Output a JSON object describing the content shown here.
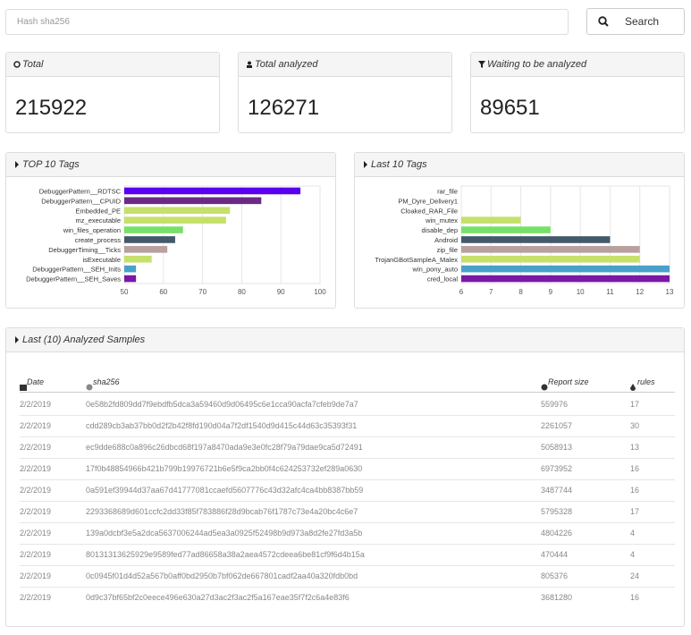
{
  "search": {
    "placeholder": "Hash sha256",
    "button": "Search"
  },
  "stats": [
    {
      "title": "Total",
      "value": 215922
    },
    {
      "title": "Total analyzed",
      "value": 126271
    },
    {
      "title": "Waiting to be analyzed",
      "value": 89651
    }
  ],
  "chart_data": [
    {
      "type": "hbar",
      "title": "TOP 10 Tags",
      "categories": [
        "DebuggerPattern__RDTSC",
        "DebuggerPattern__CPUID",
        "Embedded_PE",
        "mz_executable",
        "win_files_operation",
        "create_process",
        "DebuggerTiming__Ticks",
        "isExecutable",
        "DebuggerPattern__SEH_Inits",
        "DebuggerPattern__SEH_Saves"
      ],
      "values": [
        95,
        85,
        77,
        76,
        65,
        63,
        61,
        57,
        53,
        53
      ],
      "colors": [
        "#5a00f0",
        "#6a2a86",
        "#c6e06c",
        "#c6e06c",
        "#78e068",
        "#44596a",
        "#b8a09e",
        "#c6e06c",
        "#48a2c8",
        "#7a18a8"
      ],
      "xlim": [
        50,
        100
      ],
      "xticks": [
        50,
        60,
        70,
        80,
        90,
        100
      ],
      "grid": true
    },
    {
      "type": "hbar",
      "title": "Last 10 Tags",
      "categories": [
        "rar_file",
        "PM_Dyre_Delivery1",
        "Cloaked_RAR_File",
        "win_mutex",
        "disable_dep",
        "Android",
        "zip_file",
        "TrojanGBotSampleA_Malex",
        "win_pony_auto",
        "cred_local"
      ],
      "values": [
        6,
        6,
        6,
        8,
        9,
        11,
        12,
        12,
        13,
        13
      ],
      "colors": [
        "#c6e06c",
        "#c6e06c",
        "#c6e06c",
        "#c6e06c",
        "#78e068",
        "#44596a",
        "#b8a09e",
        "#c6e06c",
        "#48a2c8",
        "#7a18a8"
      ],
      "xlim": [
        6,
        13
      ],
      "xticks": [
        6,
        7,
        8,
        9,
        10,
        11,
        12,
        13
      ],
      "grid": true
    }
  ],
  "table": {
    "title": "Last (10) Analyzed Samples",
    "columns": [
      "Date",
      "sha256",
      "Report size",
      "rules"
    ],
    "rows": [
      [
        "2/2/2019",
        "0e58b2fd809dd7f9ebdfb5dca3a59460d9d06495c6e1cca90acfa7cfeb9de7a7",
        559976,
        17
      ],
      [
        "2/2/2019",
        "cdd289cb3ab37bb0d2f2b42f8fd190d04a7f2df1540d9d415c44d63c35393f31",
        2261057,
        30
      ],
      [
        "2/2/2019",
        "ec9dde688c0a896c26dbcd68f197a8470ada9e3e0fc28f79a79dae9ca5d72491",
        5058913,
        13
      ],
      [
        "2/2/2019",
        "17f0b48854966b421b799b19976721b6e5f9ca2bb0f4c624253732ef289a0630",
        6973952,
        16
      ],
      [
        "2/2/2019",
        "0a591ef39944d37aa67d41777081ccaefd5607776c43d32afc4ca4bb8387bb59",
        3487744,
        16
      ],
      [
        "2/2/2019",
        "2293368689d601ccfc2dd33f85f783886f28d9bcab76f1787c73e4a20bc4c6e7",
        5795328,
        17
      ],
      [
        "2/2/2019",
        "139a0dcbf3e5a2dca5637006244ad5ea3a0925f52498b9d973a8d2fe27fd3a5b",
        4804226,
        4
      ],
      [
        "2/2/2019",
        "80131313625929e9589fed77ad86658a38a2aea4572cdeea6be81cf9f6d4b15a",
        470444,
        4
      ],
      [
        "2/2/2019",
        "0c0945f01d4d52a567b0aff0bd2950b7bf062de667801cadf2aa40a320fdb0bd",
        805376,
        24
      ],
      [
        "2/2/2019",
        "0d9c37bf65bf2c0eece496e630a27d3ac2f3ac2f5a167eae35f7f2c6a4e83f6",
        3681280,
        16
      ]
    ]
  }
}
